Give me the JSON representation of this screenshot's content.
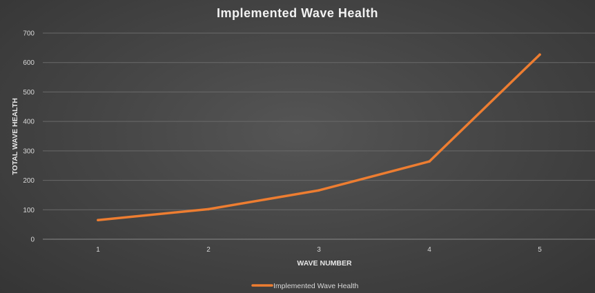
{
  "chart_data": {
    "type": "line",
    "title": "Implemented Wave Health",
    "xlabel": "WAVE NUMBER",
    "ylabel": "TOTAL WAVE HEALTH",
    "categories": [
      "1",
      "2",
      "3",
      "4",
      "5"
    ],
    "ylim": [
      0,
      700
    ],
    "yticks": [
      "0",
      "100",
      "200",
      "300",
      "400",
      "500",
      "600",
      "700"
    ],
    "grid": true,
    "legend_position": "bottom",
    "series": [
      {
        "name": "Implemented Wave Health",
        "color": "#ed7d31",
        "values": [
          65,
          102,
          166,
          264,
          627
        ]
      }
    ]
  }
}
